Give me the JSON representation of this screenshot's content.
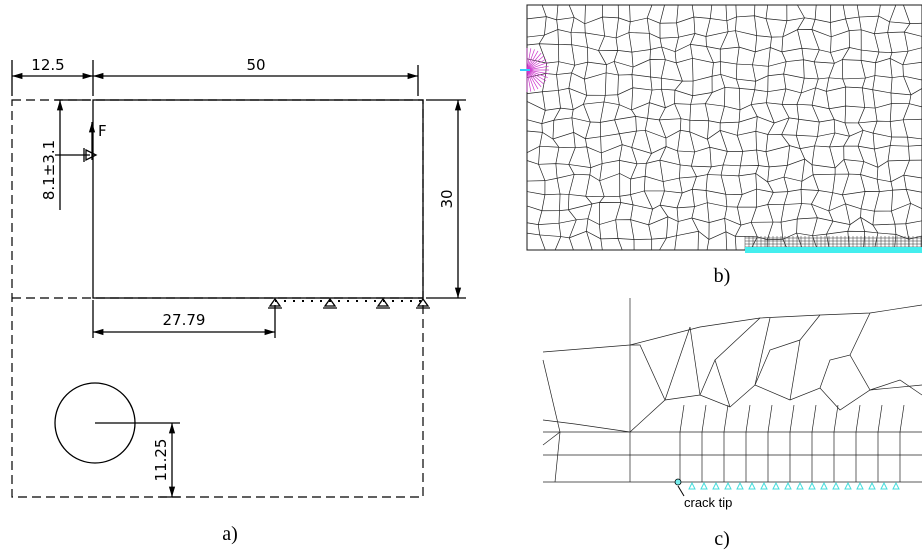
{
  "panel_a": {
    "dim_left": "12.5",
    "dim_top": "50",
    "dim_right": "30",
    "force": "F",
    "dim_force": "8.1±3.1",
    "dim_support": "27.79",
    "dim_hole": "11.25",
    "caption": "a)"
  },
  "panel_b": {
    "caption": "b)"
  },
  "panel_c": {
    "annotation": "crack tip",
    "caption": "c)"
  }
}
